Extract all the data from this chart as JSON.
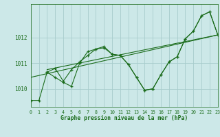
{
  "bg_color": "#cce8e8",
  "line_color": "#1a6b1a",
  "grid_color": "#a8cccc",
  "xlabel": "Graphe pression niveau de la mer (hPa)",
  "xlim": [
    0,
    23
  ],
  "ylim": [
    1009.3,
    1013.3
  ],
  "yticks": [
    1010,
    1011,
    1012
  ],
  "xticks": [
    0,
    1,
    2,
    3,
    4,
    5,
    6,
    7,
    8,
    9,
    10,
    11,
    12,
    13,
    14,
    15,
    16,
    17,
    18,
    19,
    20,
    21,
    22,
    23
  ],
  "series1_x": [
    0,
    1,
    2,
    3,
    4,
    5,
    6,
    7,
    8,
    9,
    10,
    11,
    12,
    13,
    14,
    15,
    16,
    17,
    18,
    19,
    20,
    21,
    22,
    23
  ],
  "series1_y": [
    1009.55,
    1009.55,
    1010.65,
    1010.45,
    1010.25,
    1010.1,
    1011.0,
    1011.45,
    1011.55,
    1011.65,
    1011.35,
    1011.3,
    1010.95,
    1010.45,
    1009.95,
    1010.0,
    1010.55,
    1011.05,
    1011.25,
    1011.95,
    1012.25,
    1012.85,
    1013.0,
    1012.1
  ],
  "series2_x": [
    2,
    3,
    4,
    5,
    6,
    7,
    8,
    9,
    10,
    11,
    12,
    13,
    14,
    15,
    16,
    17,
    18,
    19,
    20,
    21,
    22,
    23
  ],
  "series2_y": [
    1010.65,
    1010.8,
    1010.3,
    1010.75,
    1011.05,
    1011.3,
    1011.55,
    1011.6,
    1011.35,
    1011.3,
    1010.95,
    1010.45,
    1009.95,
    1010.0,
    1010.55,
    1011.05,
    1011.25,
    1011.95,
    1012.25,
    1012.85,
    1013.0,
    1012.1
  ],
  "trend1_x": [
    0,
    23
  ],
  "trend1_y": [
    1010.45,
    1012.1
  ],
  "trend2_x": [
    2,
    23
  ],
  "trend2_y": [
    1010.75,
    1012.1
  ]
}
